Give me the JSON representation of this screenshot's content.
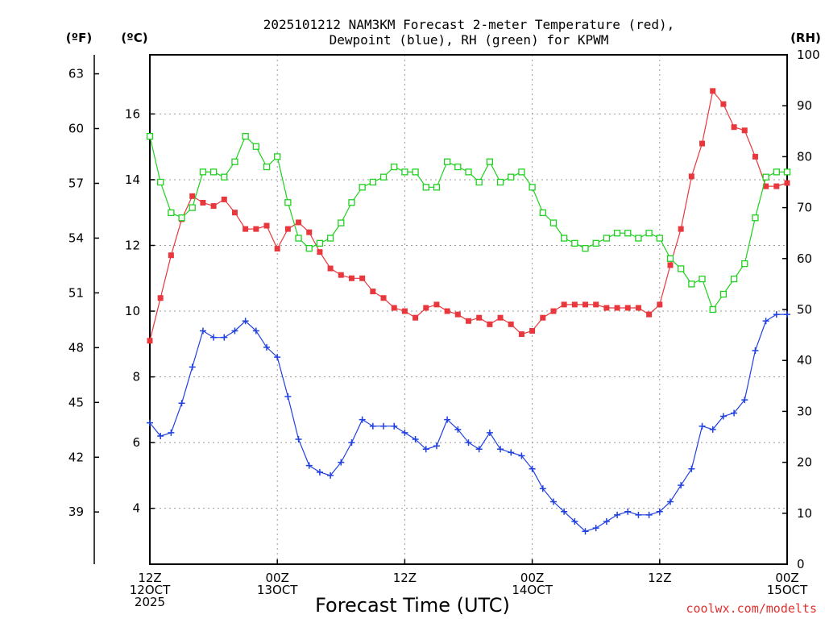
{
  "chart_data": {
    "type": "line",
    "title_line1": "2025101212 NAM3KM Forecast 2-meter Temperature (red),",
    "title_line2": "Dewpoint (blue), RH (green) for KPWM",
    "xlabel": "Forecast Time (UTC)",
    "credit": "coolwx.com/modelts",
    "units": {
      "fahrenheit": "(ºF)",
      "celsius": "(ºC)",
      "rh": "(RH)"
    },
    "x_tick_labels": [
      {
        "hour": 0,
        "lines": [
          "12Z",
          "12OCT",
          "2025"
        ]
      },
      {
        "hour": 12,
        "lines": [
          "00Z",
          "13OCT"
        ]
      },
      {
        "hour": 24,
        "lines": [
          "12Z"
        ]
      },
      {
        "hour": 36,
        "lines": [
          "00Z",
          "14OCT"
        ]
      },
      {
        "hour": 48,
        "lines": [
          "12Z"
        ]
      },
      {
        "hour": 60,
        "lines": [
          "00Z",
          "15OCT"
        ]
      }
    ],
    "xlim_hours": [
      0,
      60
    ],
    "celsius_ylim": [
      2.3,
      17.8
    ],
    "celsius_ticks": [
      4,
      6,
      8,
      10,
      12,
      14,
      16
    ],
    "fahrenheit_ticks": [
      39,
      42,
      45,
      48,
      51,
      54,
      57,
      60,
      63
    ],
    "rh_ylim": [
      0,
      100
    ],
    "rh_ticks": [
      0,
      10,
      20,
      30,
      40,
      50,
      60,
      70,
      80,
      90,
      100
    ],
    "colors": {
      "temperature": "#e8383d",
      "dewpoint": "#2040e0",
      "rh": "#20d020",
      "grid": "#999999"
    },
    "series": [
      {
        "name": "Temperature",
        "axis": "celsius",
        "marker": "filled-square",
        "x": [
          0,
          1,
          2,
          3,
          4,
          5,
          6,
          7,
          8,
          9,
          10,
          11,
          12,
          13,
          14,
          15,
          16,
          17,
          18,
          19,
          20,
          21,
          22,
          23,
          24,
          25,
          26,
          27,
          28,
          29,
          30,
          31,
          32,
          33,
          34,
          35,
          36,
          37,
          38,
          39,
          40,
          41,
          42,
          43,
          44,
          45,
          46,
          47,
          48,
          49,
          50,
          51,
          52,
          53,
          54,
          55,
          56,
          57,
          58,
          59,
          60
        ],
        "values": [
          9.1,
          10.4,
          11.7,
          12.8,
          13.5,
          13.3,
          13.2,
          13.4,
          13.0,
          12.5,
          12.5,
          12.6,
          11.9,
          12.5,
          12.7,
          12.4,
          11.8,
          11.3,
          11.1,
          11.0,
          11.0,
          10.6,
          10.4,
          10.1,
          10.0,
          9.8,
          10.1,
          10.2,
          10.0,
          9.9,
          9.7,
          9.8,
          9.6,
          9.8,
          9.6,
          9.3,
          9.4,
          9.8,
          10.0,
          10.2,
          10.2,
          10.2,
          10.2,
          10.1,
          10.1,
          10.1,
          10.1,
          9.9,
          10.2,
          11.4,
          12.5,
          14.1,
          15.1,
          16.7,
          16.3,
          15.6,
          15.5,
          14.7,
          13.8,
          13.8,
          13.9
        ]
      },
      {
        "name": "Dewpoint",
        "axis": "celsius",
        "marker": "plus",
        "x": [
          0,
          1,
          2,
          3,
          4,
          5,
          6,
          7,
          8,
          9,
          10,
          11,
          12,
          13,
          14,
          15,
          16,
          17,
          18,
          19,
          20,
          21,
          22,
          23,
          24,
          25,
          26,
          27,
          28,
          29,
          30,
          31,
          32,
          33,
          34,
          35,
          36,
          37,
          38,
          39,
          40,
          41,
          42,
          43,
          44,
          45,
          46,
          47,
          48,
          49,
          50,
          51,
          52,
          53,
          54,
          55,
          56,
          57,
          58,
          59,
          60
        ],
        "values": [
          6.6,
          6.2,
          6.3,
          7.2,
          8.3,
          9.4,
          9.2,
          9.2,
          9.4,
          9.7,
          9.4,
          8.9,
          8.6,
          7.4,
          6.1,
          5.3,
          5.1,
          5.0,
          5.4,
          6.0,
          6.7,
          6.5,
          6.5,
          6.5,
          6.3,
          6.1,
          5.8,
          5.9,
          6.7,
          6.4,
          6.0,
          5.8,
          6.3,
          5.8,
          5.7,
          5.6,
          5.2,
          4.6,
          4.2,
          3.9,
          3.6,
          3.3,
          3.4,
          3.6,
          3.8,
          3.9,
          3.8,
          3.8,
          3.9,
          4.2,
          4.7,
          5.2,
          6.5,
          6.4,
          6.8,
          6.9,
          7.3,
          8.8,
          9.7,
          9.9,
          9.9
        ]
      },
      {
        "name": "RH",
        "axis": "rh",
        "marker": "open-square",
        "x": [
          0,
          1,
          2,
          3,
          4,
          5,
          6,
          7,
          8,
          9,
          10,
          11,
          12,
          13,
          14,
          15,
          16,
          17,
          18,
          19,
          20,
          21,
          22,
          23,
          24,
          25,
          26,
          27,
          28,
          29,
          30,
          31,
          32,
          33,
          34,
          35,
          36,
          37,
          38,
          39,
          40,
          41,
          42,
          43,
          44,
          45,
          46,
          47,
          48,
          49,
          50,
          51,
          52,
          53,
          54,
          55,
          56,
          57,
          58,
          59,
          60
        ],
        "values": [
          84,
          75,
          69,
          68,
          70,
          77,
          77,
          76,
          79,
          84,
          82,
          78,
          80,
          71,
          64,
          62,
          63,
          64,
          67,
          71,
          74,
          75,
          76,
          78,
          77,
          77,
          74,
          74,
          79,
          78,
          77,
          75,
          79,
          75,
          76,
          77,
          74,
          69,
          67,
          64,
          63,
          62,
          63,
          64,
          65,
          65,
          64,
          65,
          64,
          60,
          58,
          55,
          56,
          50,
          53,
          56,
          59,
          68,
          76,
          77,
          77
        ]
      }
    ]
  }
}
